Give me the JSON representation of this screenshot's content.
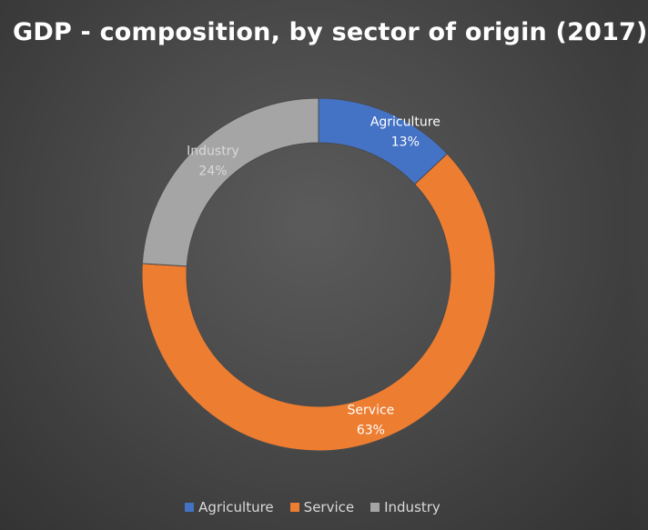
{
  "chart_data": {
    "type": "pie",
    "donut": true,
    "title": "GDP - composition, by sector of origin (2017)",
    "slices": [
      {
        "name": "Agriculture",
        "value": 13,
        "label": "13%",
        "color": "#4472c4",
        "label_color": "#ffffff"
      },
      {
        "name": "Service",
        "value": 63,
        "label": "63%",
        "color": "#ed7d31",
        "label_color": "#ffffff"
      },
      {
        "name": "Industry",
        "value": 24,
        "label": "24%",
        "color": "#a5a5a5",
        "label_color": "#d9d9d9"
      }
    ],
    "legend": {
      "position": "bottom",
      "items": [
        "Agriculture",
        "Service",
        "Industry"
      ]
    }
  }
}
